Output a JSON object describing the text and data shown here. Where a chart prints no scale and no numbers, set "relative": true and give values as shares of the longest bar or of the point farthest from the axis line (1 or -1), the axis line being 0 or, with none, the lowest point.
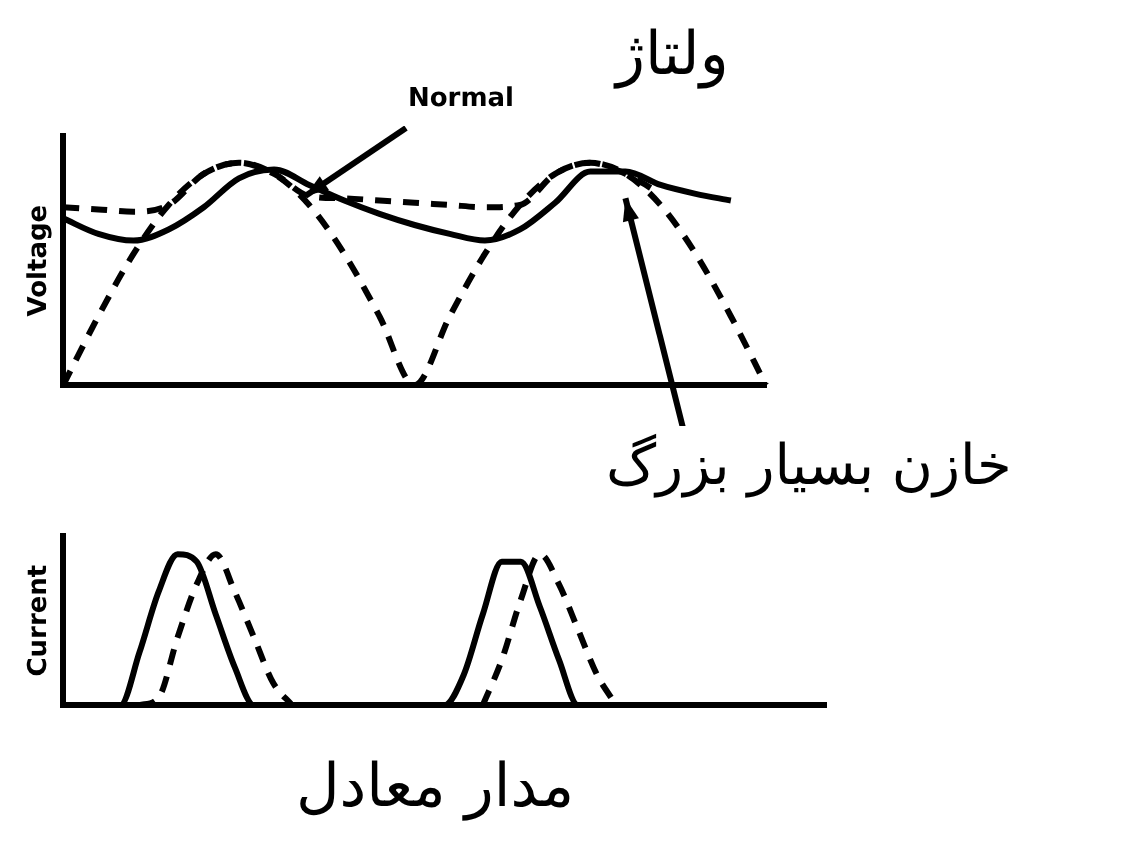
{
  "chart_data": [
    {
      "type": "line",
      "title": "ولتاژ",
      "ylabel": "Voltage",
      "relative": true,
      "grid": false,
      "legend": false,
      "marker": "none",
      "categories": [
        null,
        null,
        null,
        null,
        null,
        null,
        null,
        null,
        null,
        null,
        null,
        null,
        null,
        null,
        null,
        null,
        null,
        null,
        null,
        null,
        null
      ],
      "annotations": [
        "Normal",
        "خازن بسیار بزرگ"
      ],
      "series": [
        {
          "color": "#000000",
          "line_style": "solid",
          "values": [
            0.75,
            0.68,
            0.65,
            0.7,
            0.8,
            0.93,
            0.97,
            0.9,
            0.83,
            0.77,
            0.72,
            0.68,
            0.65,
            0.7,
            0.82,
            0.96,
            0.96,
            0.9,
            0.86,
            0.83,
            null
          ]
        },
        {
          "color": "#000000",
          "line_style": "dashed",
          "values": [
            0,
            0.31,
            0.59,
            0.81,
            0.95,
            1,
            0.95,
            0.81,
            0.59,
            0.31,
            0,
            0.31,
            0.59,
            0.81,
            0.95,
            1,
            0.95,
            0.81,
            0.59,
            0.31,
            0
          ]
        },
        {
          "color": "#000000",
          "line_style": "dashed",
          "values": [
            0.8,
            0.79,
            0.78,
            0.81,
            0.95,
            1,
            0.95,
            0.85,
            0.84,
            0.83,
            0.82,
            0.81,
            0.8,
            0.81,
            0.95,
            1,
            0.95,
            0.86,
            null,
            null,
            null
          ]
        }
      ]
    },
    {
      "type": "line",
      "ylabel": "Current",
      "relative": true,
      "grid": false,
      "legend": false,
      "marker": "none",
      "categories": [
        null,
        null,
        null,
        null,
        null,
        null,
        null,
        null,
        null,
        null,
        null,
        null,
        null,
        null,
        null,
        null,
        null,
        null,
        null,
        null,
        null,
        null,
        null,
        null,
        null,
        null,
        null,
        null,
        null,
        null,
        null,
        null,
        null,
        null,
        null,
        null,
        null,
        null,
        null,
        null,
        null
      ],
      "annotations": [
        "مدار معادل"
      ],
      "series": [
        {
          "color": "#000000",
          "line_style": "solid",
          "values": [
            0,
            0,
            0,
            0,
            0.35,
            0.75,
            1,
            0.95,
            0.6,
            0.25,
            0,
            0,
            0,
            0,
            0,
            0,
            0,
            0,
            0,
            0,
            0,
            0.2,
            0.6,
            0.95,
            0.95,
            0.65,
            0.3,
            0,
            0,
            0,
            0,
            0,
            0,
            0,
            0,
            0,
            0,
            0,
            0,
            0,
            0
          ]
        },
        {
          "color": "#000000",
          "line_style": "dashed",
          "values": [
            null,
            null,
            null,
            null,
            0,
            0.05,
            0.45,
            0.8,
            1,
            0.75,
            0.45,
            0.15,
            0,
            null,
            null,
            null,
            null,
            null,
            null,
            null,
            null,
            null,
            0,
            0.3,
            0.7,
            1,
            0.8,
            0.5,
            0.2,
            0,
            null,
            null,
            null,
            null,
            null,
            null,
            null,
            null,
            null,
            null,
            null
          ]
        }
      ]
    }
  ]
}
